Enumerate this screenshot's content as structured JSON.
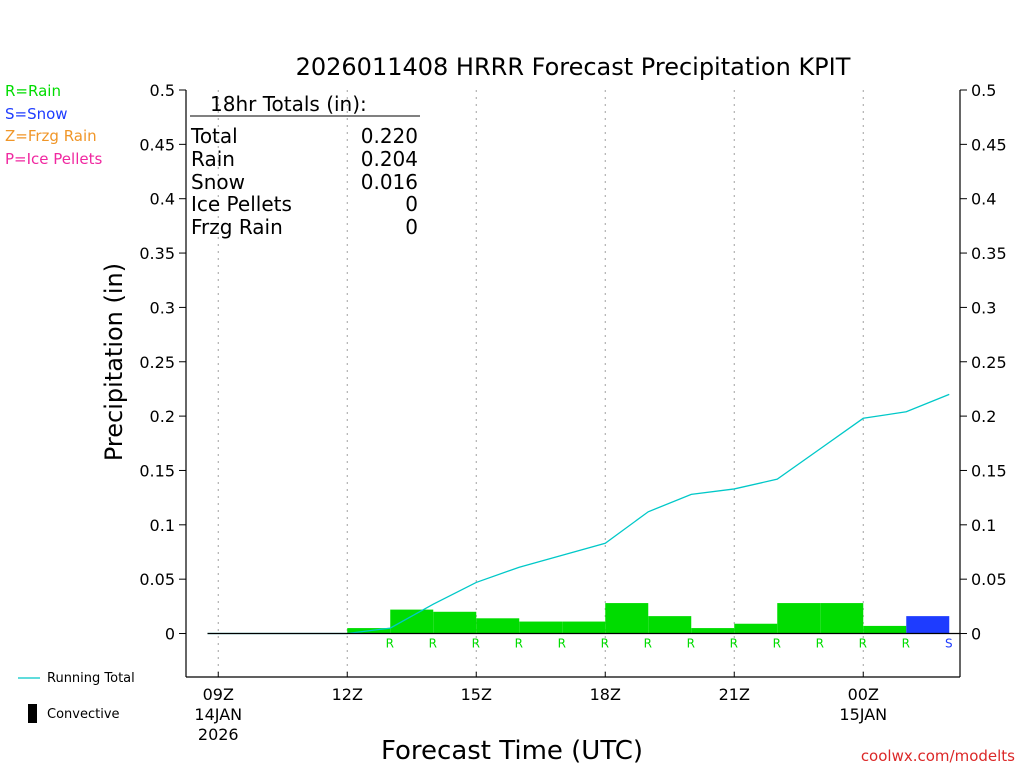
{
  "chart_data": {
    "type": "bar",
    "title": "2026011408 HRRR Forecast Precipitation KPIT",
    "xlabel": "Forecast Time (UTC)",
    "ylabel": "Precipitation (in)",
    "ylim": [
      -0.04,
      0.5
    ],
    "yticks": [
      0,
      0.05,
      0.1,
      0.15,
      0.2,
      0.25,
      0.3,
      0.35,
      0.4,
      0.45,
      0.5
    ],
    "ytick_labels": [
      "0",
      "0.05",
      "0.1",
      "0.15",
      "0.2",
      "0.25",
      "0.3",
      "0.35",
      "0.4",
      "0.45",
      "0.5"
    ],
    "xlim_hours": [
      8.25,
      26.25
    ],
    "xticks": [
      {
        "hour": 9,
        "label": "09Z",
        "sub1": "14JAN",
        "sub2": "2026"
      },
      {
        "hour": 12,
        "label": "12Z",
        "sub1": "",
        "sub2": ""
      },
      {
        "hour": 15,
        "label": "15Z",
        "sub1": "",
        "sub2": ""
      },
      {
        "hour": 18,
        "label": "18Z",
        "sub1": "",
        "sub2": ""
      },
      {
        "hour": 21,
        "label": "21Z",
        "sub1": "",
        "sub2": ""
      },
      {
        "hour": 24,
        "label": "00Z",
        "sub1": "15JAN",
        "sub2": ""
      }
    ],
    "hours": [
      9,
      10,
      11,
      12,
      13,
      14,
      15,
      16,
      17,
      18,
      19,
      20,
      21,
      22,
      23,
      24,
      25,
      26
    ],
    "hourly_precip": [
      0,
      0,
      0,
      0,
      0.005,
      0.022,
      0.02,
      0.014,
      0.011,
      0.011,
      0.028,
      0.016,
      0.005,
      0.009,
      0.028,
      0.028,
      0.007,
      0.016
    ],
    "precip_type": [
      "",
      "",
      "",
      "",
      "R",
      "R",
      "R",
      "R",
      "R",
      "R",
      "R",
      "R",
      "R",
      "R",
      "R",
      "R",
      "R",
      "S"
    ],
    "running_total_hours": [
      8.75,
      12,
      13,
      14,
      15,
      16,
      17,
      18,
      19,
      20,
      21,
      22,
      23,
      24,
      25,
      26
    ],
    "running_total": [
      0,
      0,
      0.005,
      0.027,
      0.047,
      0.061,
      0.072,
      0.083,
      0.112,
      0.128,
      0.133,
      0.142,
      0.17,
      0.198,
      0.204,
      0.22
    ],
    "series": [
      {
        "name": "Running Total",
        "color": "#00c8c8"
      },
      {
        "name": "Convective",
        "color": "#000000"
      }
    ],
    "type_legend": [
      {
        "text": "R=Rain",
        "color": "#00dc00"
      },
      {
        "text": "S=Snow",
        "color": "#1e3cff"
      },
      {
        "text": "Z=Frzg Rain",
        "color": "#f09628"
      },
      {
        "text": "P=Ice Pellets",
        "color": "#f028a0"
      }
    ],
    "type_colors": {
      "R": "#00dc00",
      "S": "#1e3cff"
    },
    "totals_table": {
      "header": "18hr Totals (in):",
      "rows": [
        {
          "label": "Total",
          "value": "0.220"
        },
        {
          "label": "Rain",
          "value": "0.204"
        },
        {
          "label": "Snow",
          "value": "0.016"
        },
        {
          "label": "Ice Pellets",
          "value": "0"
        },
        {
          "label": "Frzg Rain",
          "value": "0"
        }
      ]
    },
    "credit": "coolwx.com/modelts"
  }
}
